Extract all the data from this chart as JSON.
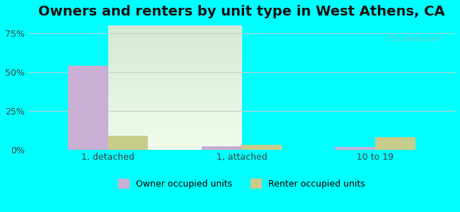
{
  "title": "Owners and renters by unit type in West Athens, CA",
  "categories": [
    "1, detached",
    "1, attached",
    "10 to 19"
  ],
  "owner_values": [
    54,
    2,
    1.5
  ],
  "renter_values": [
    9,
    3,
    8
  ],
  "owner_color": "#c9afd4",
  "renter_color": "#c8cc8a",
  "background_color": "#00ffff",
  "plot_bg_top": "#d4ead4",
  "plot_bg_bottom": "#e8f5e0",
  "yticks": [
    0,
    25,
    50,
    75
  ],
  "ylim": [
    0,
    80
  ],
  "ylabel_format": "{}%",
  "bar_width": 0.3,
  "watermark": "City-Data.com",
  "legend_owner": "Owner occupied units",
  "legend_renter": "Renter occupied units",
  "title_fontsize": 14,
  "tick_fontsize": 9,
  "legend_fontsize": 9
}
